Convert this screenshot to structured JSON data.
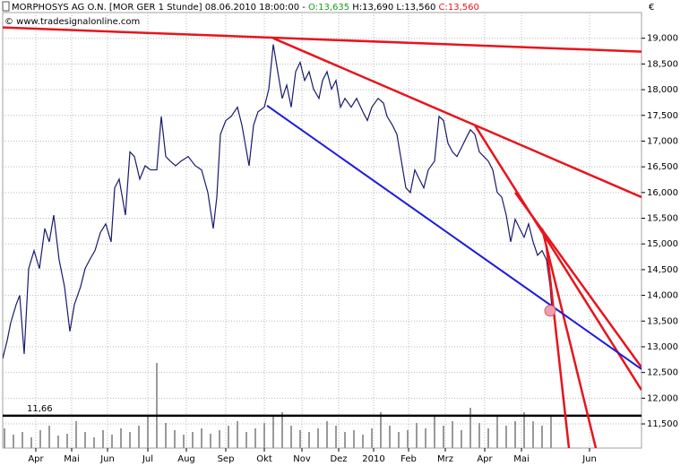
{
  "chart_data": {
    "type": "line",
    "header": {
      "instrument": "MORPHOSYS AG O.N. [MOR GER  1 Stunde] 08.06.2010 18:00:00 -",
      "open": "O:13,635",
      "high": "H:13,690",
      "low": "L:13,560",
      "close": "C:13,560"
    },
    "watermark": "© www.tradesignalonline.com",
    "y_unit": "€",
    "grid": true,
    "xlim": [
      0,
      713
    ],
    "ylim": [
      11030,
      19500
    ],
    "xticks": [
      {
        "value": 37,
        "label": "Apr"
      },
      {
        "value": 77,
        "label": "Mai"
      },
      {
        "value": 117,
        "label": "Jun"
      },
      {
        "value": 162,
        "label": "Jul"
      },
      {
        "value": 205,
        "label": "Aug"
      },
      {
        "value": 249,
        "label": "Sep"
      },
      {
        "value": 292,
        "label": "Okt"
      },
      {
        "value": 334,
        "label": "Nov"
      },
      {
        "value": 375,
        "label": "Dez"
      },
      {
        "value": 414,
        "label": "2010"
      },
      {
        "value": 453,
        "label": "Feb"
      },
      {
        "value": 494,
        "label": "Mrz"
      },
      {
        "value": 538,
        "label": "Apr"
      },
      {
        "value": 579,
        "label": "Mai"
      },
      {
        "value": 655,
        "label": "Jun"
      }
    ],
    "yticks": [
      {
        "value": 11500,
        "label": "11,500"
      },
      {
        "value": 12000,
        "label": "12,000"
      },
      {
        "value": 12500,
        "label": "12,500"
      },
      {
        "value": 13000,
        "label": "13,000"
      },
      {
        "value": 13500,
        "label": "13,500"
      },
      {
        "value": 14000,
        "label": "14,000"
      },
      {
        "value": 14500,
        "label": "14,500"
      },
      {
        "value": 15000,
        "label": "15,000"
      },
      {
        "value": 15500,
        "label": "15,500"
      },
      {
        "value": 16000,
        "label": "16,000"
      },
      {
        "value": 16500,
        "label": "16,500"
      },
      {
        "value": 17000,
        "label": "17,000"
      },
      {
        "value": 17500,
        "label": "17,500"
      },
      {
        "value": 18000,
        "label": "18,000"
      },
      {
        "value": 18500,
        "label": "18,500"
      },
      {
        "value": 19000,
        "label": "19,000"
      }
    ],
    "series": [
      {
        "color": "#1a1a6e",
        "x": [
          0,
          5,
          9,
          15,
          19,
          24,
          29,
          35,
          41,
          47,
          52,
          57,
          63,
          69,
          75,
          80,
          87,
          92,
          97,
          103,
          109,
          115,
          121,
          125,
          130,
          137,
          142,
          147,
          153,
          159,
          165,
          172,
          177,
          182,
          187,
          193,
          199,
          207,
          215,
          222,
          229,
          235,
          239,
          243,
          249,
          255,
          262,
          267,
          275,
          280,
          285,
          292,
          297,
          302,
          307,
          312,
          317,
          322,
          327,
          332,
          337,
          342,
          347,
          353,
          357,
          362,
          367,
          372,
          377,
          382,
          389,
          395,
          402,
          407,
          412,
          419,
          425,
          429,
          435,
          440,
          445,
          450,
          455,
          460,
          465,
          470,
          475,
          482,
          487,
          492,
          497,
          502,
          507,
          512,
          517,
          522,
          527,
          532,
          537,
          542,
          547,
          552,
          557,
          562,
          567,
          572,
          577,
          582,
          587,
          592,
          597,
          602,
          607,
          611,
          613
        ],
        "values": [
          12770,
          13120,
          13470,
          13820,
          14000,
          12860,
          14520,
          14870,
          14520,
          15300,
          15040,
          15560,
          14690,
          14170,
          13300,
          13820,
          14170,
          14520,
          14690,
          14870,
          15220,
          15390,
          15040,
          16090,
          16260,
          15560,
          16790,
          16700,
          16260,
          16520,
          16440,
          16440,
          17480,
          16700,
          16610,
          16520,
          16610,
          16700,
          16520,
          16440,
          16000,
          15300,
          15910,
          17130,
          17400,
          17480,
          17660,
          17310,
          16520,
          17310,
          17570,
          17660,
          18010,
          18880,
          18350,
          17830,
          18090,
          17660,
          18350,
          18530,
          18180,
          18350,
          18010,
          17830,
          18180,
          18350,
          18010,
          18180,
          17660,
          17830,
          17660,
          17830,
          17570,
          17400,
          17660,
          17830,
          17740,
          17480,
          17310,
          17130,
          16610,
          16090,
          16000,
          16440,
          16260,
          16090,
          16440,
          16610,
          17480,
          17400,
          16960,
          16790,
          16700,
          16870,
          17050,
          17220,
          17130,
          16790,
          16700,
          16610,
          16440,
          16000,
          15910,
          15560,
          15040,
          15480,
          15300,
          15130,
          15390,
          15040,
          14780,
          14870,
          14690,
          14170,
          13730
        ]
      }
    ],
    "volume": {
      "color": "#9a9a9a",
      "vlim": [
        0,
        100
      ],
      "x": [
        2,
        12,
        22,
        32,
        42,
        52,
        62,
        72,
        82,
        92,
        102,
        112,
        122,
        132,
        142,
        152,
        162,
        172,
        182,
        192,
        202,
        212,
        222,
        232,
        242,
        252,
        262,
        272,
        282,
        292,
        302,
        312,
        322,
        332,
        342,
        352,
        362,
        372,
        382,
        392,
        402,
        412,
        422,
        432,
        442,
        452,
        462,
        472,
        482,
        492,
        502,
        512,
        522,
        532,
        542,
        552,
        562,
        572,
        582,
        592,
        602,
        612
      ],
      "values": [
        22,
        15,
        18,
        12,
        20,
        25,
        14,
        16,
        30,
        18,
        12,
        20,
        15,
        22,
        18,
        25,
        35,
        95,
        28,
        20,
        15,
        18,
        22,
        16,
        20,
        25,
        30,
        18,
        22,
        28,
        35,
        40,
        25,
        20,
        18,
        22,
        30,
        25,
        18,
        20,
        15,
        22,
        40,
        25,
        18,
        20,
        28,
        22,
        35,
        25,
        30,
        20,
        45,
        28,
        22,
        35,
        25,
        30,
        40,
        30,
        25,
        35
      ]
    },
    "trendlines": [
      {
        "color": "#e8141c",
        "points": [
          [
            0,
            19210
          ],
          [
            713,
            18740
          ]
        ]
      },
      {
        "color": "#e8141c",
        "points": [
          [
            302,
            19000
          ],
          [
            527,
            17310
          ]
        ]
      },
      {
        "color": "#e8141c",
        "points": [
          [
            527,
            17310
          ],
          [
            713,
            15910
          ]
        ]
      },
      {
        "color": "#e8141c",
        "points": [
          [
            527,
            17310
          ],
          [
            713,
            12160
          ]
        ]
      },
      {
        "color": "#e8141c",
        "points": [
          [
            572,
            16000
          ],
          [
            713,
            12600
          ]
        ]
      },
      {
        "color": "#e8141c",
        "points": [
          [
            602,
            15300
          ],
          [
            662,
            11030
          ]
        ]
      },
      {
        "color": "#e8141c",
        "points": [
          [
            607,
            14950
          ],
          [
            632,
            11030
          ]
        ]
      },
      {
        "color": "#1c1cdc",
        "points": [
          [
            295,
            17690
          ],
          [
            713,
            12565
          ]
        ]
      }
    ],
    "hline": {
      "value": 11660,
      "label": "11,66",
      "color": "#000000"
    },
    "marker": {
      "x": 611,
      "value": 13700,
      "color": "#f0a0a8"
    }
  }
}
